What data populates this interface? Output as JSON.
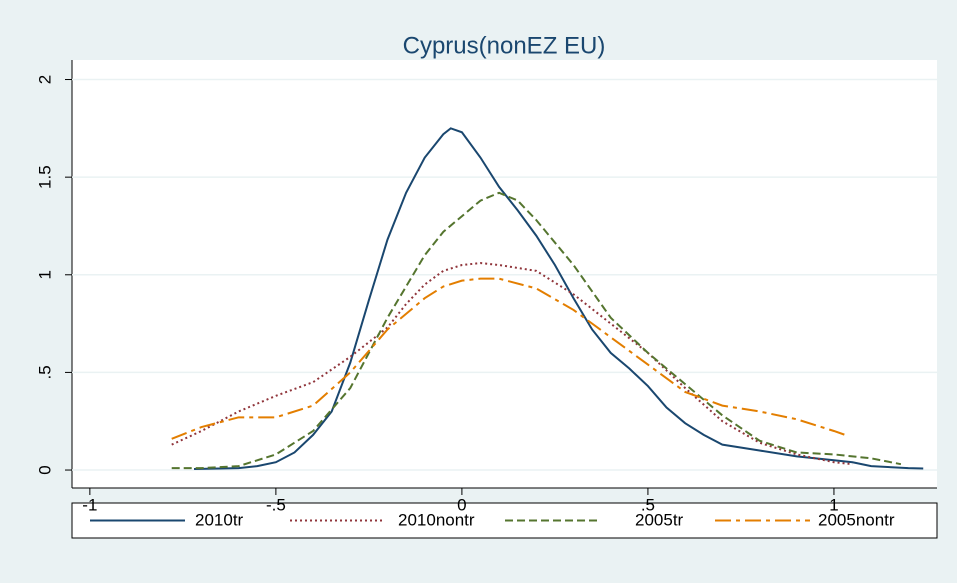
{
  "chart_data": {
    "type": "line",
    "title": "Cyprus(nonEZ EU)",
    "xlim": [
      -1.048,
      1.277
    ],
    "ylim": [
      -0.092,
      2.1
    ],
    "xticks": [
      -1,
      {
        "value": -0.5,
        "label": "-.5"
      },
      0,
      {
        "value": 0.5,
        "label": ".5"
      },
      1
    ],
    "yticks": [
      0,
      {
        "value": 0.5,
        "label": ".5"
      },
      1,
      1.5,
      2
    ],
    "grid": true,
    "legend": "bottom",
    "series": [
      {
        "name": "2010tr",
        "color": "#1a476f",
        "style": "solid",
        "x": [
          -0.72,
          -0.65,
          -0.6,
          -0.55,
          -0.5,
          -0.45,
          -0.4,
          -0.35,
          -0.3,
          -0.25,
          -0.2,
          -0.15,
          -0.1,
          -0.05,
          -0.03,
          0,
          0.05,
          0.1,
          0.15,
          0.2,
          0.25,
          0.3,
          0.35,
          0.4,
          0.45,
          0.5,
          0.55,
          0.6,
          0.65,
          0.7,
          0.8,
          0.9,
          1.0,
          1.05,
          1.1,
          1.2,
          1.24
        ],
        "values": [
          0.005,
          0.008,
          0.01,
          0.02,
          0.04,
          0.09,
          0.18,
          0.3,
          0.55,
          0.87,
          1.18,
          1.42,
          1.6,
          1.72,
          1.75,
          1.73,
          1.6,
          1.45,
          1.33,
          1.2,
          1.05,
          0.88,
          0.72,
          0.6,
          0.52,
          0.43,
          0.32,
          0.24,
          0.18,
          0.13,
          0.1,
          0.07,
          0.05,
          0.04,
          0.02,
          0.01,
          0.008
        ]
      },
      {
        "name": "2010nontr",
        "color": "#90353b",
        "style": "dotted",
        "x": [
          -0.78,
          -0.7,
          -0.6,
          -0.5,
          -0.4,
          -0.3,
          -0.2,
          -0.15,
          -0.1,
          -0.05,
          0,
          0.05,
          0.1,
          0.2,
          0.3,
          0.4,
          0.5,
          0.6,
          0.7,
          0.8,
          0.9,
          1.0,
          1.05
        ],
        "values": [
          0.13,
          0.2,
          0.3,
          0.38,
          0.45,
          0.58,
          0.73,
          0.85,
          0.95,
          1.02,
          1.05,
          1.06,
          1.05,
          1.02,
          0.9,
          0.75,
          0.6,
          0.42,
          0.25,
          0.14,
          0.08,
          0.04,
          0.03
        ]
      },
      {
        "name": "2005tr",
        "color": "#55752f",
        "style": "dashed",
        "x": [
          -0.78,
          -0.7,
          -0.6,
          -0.5,
          -0.4,
          -0.3,
          -0.2,
          -0.1,
          -0.05,
          0,
          0.05,
          0.1,
          0.15,
          0.2,
          0.3,
          0.4,
          0.5,
          0.6,
          0.7,
          0.8,
          0.9,
          1.0,
          1.1,
          1.18
        ],
        "values": [
          0.01,
          0.01,
          0.02,
          0.08,
          0.2,
          0.42,
          0.78,
          1.1,
          1.22,
          1.3,
          1.38,
          1.42,
          1.38,
          1.28,
          1.05,
          0.78,
          0.6,
          0.44,
          0.28,
          0.15,
          0.09,
          0.08,
          0.06,
          0.03
        ]
      },
      {
        "name": "2005nontr",
        "color": "#e37e00",
        "style": "longdash",
        "x": [
          -0.78,
          -0.7,
          -0.6,
          -0.5,
          -0.4,
          -0.3,
          -0.2,
          -0.1,
          -0.05,
          0,
          0.05,
          0.1,
          0.2,
          0.3,
          0.4,
          0.5,
          0.6,
          0.7,
          0.8,
          0.9,
          1.0,
          1.03
        ],
        "values": [
          0.16,
          0.22,
          0.27,
          0.27,
          0.33,
          0.5,
          0.72,
          0.88,
          0.94,
          0.97,
          0.98,
          0.98,
          0.93,
          0.82,
          0.68,
          0.54,
          0.4,
          0.33,
          0.3,
          0.26,
          0.2,
          0.18
        ]
      }
    ]
  }
}
